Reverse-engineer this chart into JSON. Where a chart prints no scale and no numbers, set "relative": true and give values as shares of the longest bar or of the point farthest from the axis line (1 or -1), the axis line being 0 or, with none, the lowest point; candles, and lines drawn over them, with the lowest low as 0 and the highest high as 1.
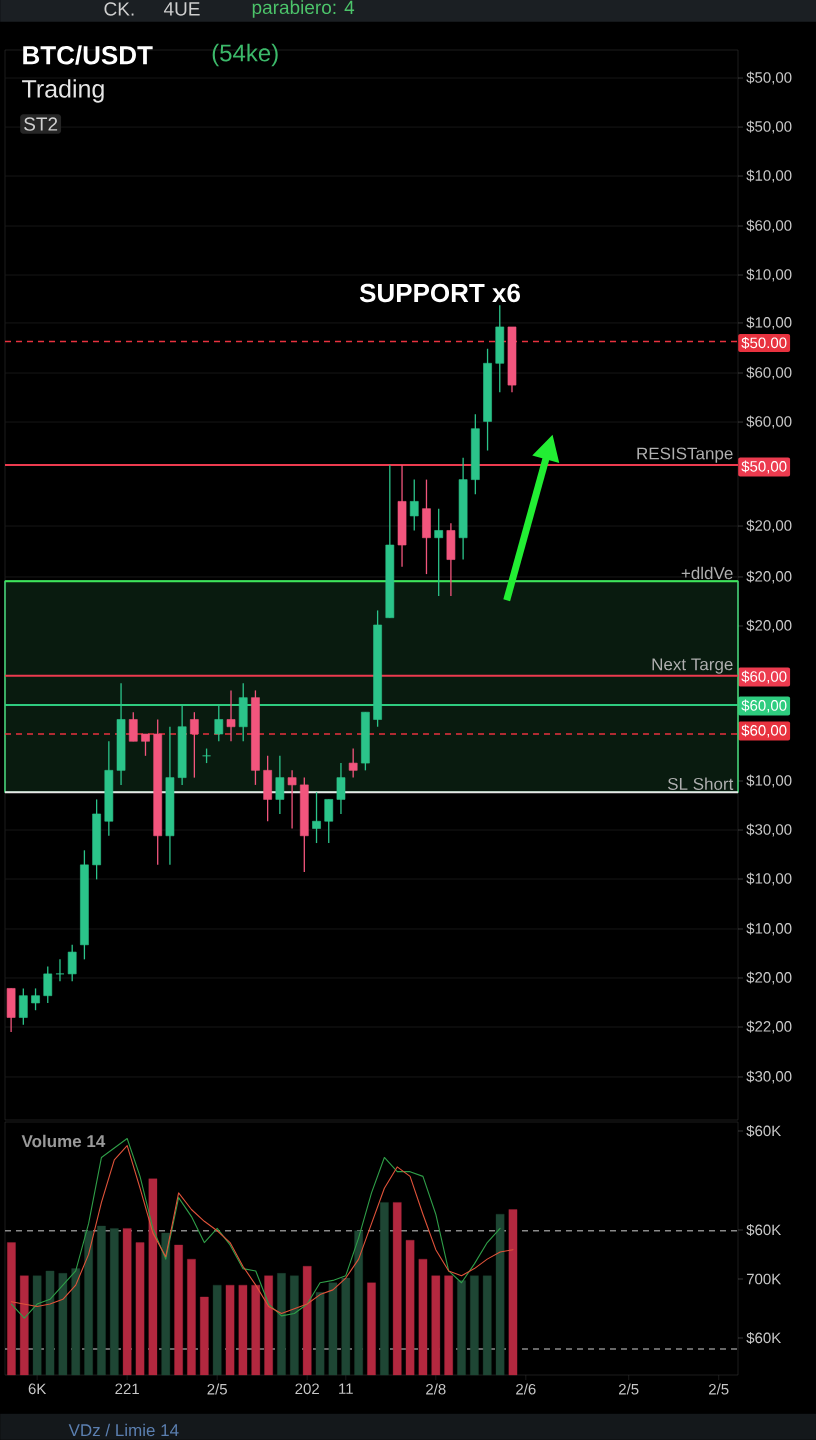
{
  "chart_data": [
    {
      "type": "other",
      "annotations": [
        "CK.",
        "4UE",
        "parabiero: 4"
      ]
    },
    {
      "type": "candlestick",
      "title": "BTC/USDT",
      "subtitle": "Trading",
      "relative": true,
      "categories": [
        null,
        null,
        null,
        null,
        null,
        null,
        null,
        null,
        null,
        null,
        null,
        null,
        null,
        null,
        null,
        null,
        null,
        null,
        null,
        null,
        null,
        null,
        null,
        null,
        null,
        null,
        null,
        null,
        null,
        null,
        null,
        null,
        null,
        null,
        null,
        null,
        null,
        null,
        null,
        null,
        null,
        null,
        null,
        null,
        null,
        null,
        null,
        null,
        null,
        null,
        null,
        null,
        null,
        null,
        null,
        null,
        null,
        null,
        null,
        null
      ],
      "ohlc": [
        [
          0.06,
          0.06,
          0,
          0.02
        ],
        [
          0.02,
          0.06,
          0.01,
          0.05
        ],
        [
          0.04,
          0.06,
          0.03,
          0.05
        ],
        [
          0.05,
          0.09,
          0.04,
          0.08
        ],
        [
          0.08,
          0.1,
          0.07,
          0.08
        ],
        [
          0.08,
          0.12,
          0.07,
          0.11
        ],
        [
          0.12,
          0.25,
          0.1,
          0.23
        ],
        [
          0.23,
          0.32,
          0.21,
          0.3
        ],
        [
          0.29,
          0.4,
          0.27,
          0.36
        ],
        [
          0.36,
          0.48,
          0.34,
          0.43
        ],
        [
          0.43,
          0.44,
          0.4,
          0.4
        ],
        [
          0.41,
          0.41,
          0.38,
          0.4
        ],
        [
          0.41,
          0.43,
          0.23,
          0.27
        ],
        [
          0.27,
          0.42,
          0.23,
          0.35
        ],
        [
          0.35,
          0.45,
          0.34,
          0.42
        ],
        [
          0.43,
          0.44,
          0.35,
          0.41
        ],
        [
          0.38,
          0.39,
          0.37,
          0.38
        ],
        [
          0.41,
          0.45,
          0.4,
          0.43
        ],
        [
          0.43,
          0.47,
          0.4,
          0.42
        ],
        [
          0.42,
          0.48,
          0.4,
          0.46
        ],
        [
          0.46,
          0.47,
          0.34,
          0.36
        ],
        [
          0.36,
          0.38,
          0.29,
          0.32
        ],
        [
          0.32,
          0.38,
          0.3,
          0.35
        ],
        [
          0.35,
          0.36,
          0.28,
          0.34
        ],
        [
          0.34,
          0.35,
          0.22,
          0.27
        ],
        [
          0.28,
          0.33,
          0.26,
          0.29
        ],
        [
          0.29,
          0.32,
          0.26,
          0.32
        ],
        [
          0.32,
          0.37,
          0.3,
          0.35
        ],
        [
          0.37,
          0.39,
          0.35,
          0.36
        ],
        [
          0.37,
          0.44,
          0.36,
          0.44
        ],
        [
          0.43,
          0.58,
          0.42,
          0.56
        ],
        [
          0.57,
          0.78,
          0.57,
          0.67
        ],
        [
          0.73,
          0.78,
          0.64,
          0.67
        ],
        [
          0.71,
          0.76,
          0.69,
          0.73
        ],
        [
          0.72,
          0.76,
          0.63,
          0.68
        ],
        [
          0.68,
          0.72,
          0.6,
          0.69
        ],
        [
          0.69,
          0.7,
          0.6,
          0.65
        ],
        [
          0.68,
          0.79,
          0.65,
          0.76
        ],
        [
          0.76,
          0.85,
          0.74,
          0.83
        ],
        [
          0.84,
          0.94,
          0.8,
          0.92
        ],
        [
          0.92,
          1,
          0.88,
          0.97
        ],
        [
          0.97,
          0.97,
          0.88,
          0.89
        ],
        null,
        null,
        null,
        null,
        null,
        null,
        null,
        null,
        null,
        null,
        null,
        null,
        null,
        null,
        null,
        null,
        null,
        null
      ],
      "colors": [
        "#f2557d",
        "#2bc48a",
        "#2bc48a",
        "#2bc48a",
        "#2bc48a",
        "#2bc48a",
        "#2bc48a",
        "#2bc48a",
        "#2bc48a",
        "#2bc48a",
        "#f2557d",
        "#f2557d",
        "#f2557d",
        "#2bc48a",
        "#2bc48a",
        "#f2557d",
        "#2bc48a",
        "#2bc48a",
        "#f2557d",
        "#2bc48a",
        "#f2557d",
        "#f2557d",
        "#2bc48a",
        "#f2557d",
        "#f2557d",
        "#2bc48a",
        "#2bc48a",
        "#2bc48a",
        "#f2557d",
        "#2bc48a",
        "#2bc48a",
        "#2bc48a",
        "#f2557d",
        "#2bc48a",
        "#f2557d",
        "#2bc48a",
        "#f2557d",
        "#2bc48a",
        "#2bc48a",
        "#2bc48a",
        "#2bc48a",
        "#f2557d",
        null,
        null,
        null,
        null,
        null,
        null,
        null,
        null,
        null,
        null,
        null,
        null,
        null,
        null,
        null,
        null,
        null,
        null
      ],
      "ref_lines": [
        {
          "axis": "y",
          "value": 0.95,
          "color": "#e8323f",
          "line_style": "dashed"
        },
        {
          "axis": "y",
          "value": 0.78,
          "label": "RESISTanpe",
          "color": "#ec3b4f"
        },
        {
          "axis": "y",
          "value": 0.62,
          "label": "+dldVe",
          "color": "#3ee55a"
        },
        {
          "axis": "y",
          "value": 0.49,
          "label": "Next Targe",
          "color": "#ec3b4f"
        },
        {
          "axis": "y",
          "value": 0.45,
          "color": "#2ecc7f"
        },
        {
          "axis": "y",
          "value": 0.41,
          "color": "#e8323f",
          "line_style": "dashed"
        },
        {
          "axis": "y",
          "value": 0.33,
          "label": "SL Short",
          "color": "#e6e6e6"
        }
      ],
      "bands": [
        {
          "axis": "y",
          "from": 0.33,
          "to": 0.62,
          "color": "#4ade80"
        }
      ],
      "annotations": [
        "(54ke)",
        "ST2",
        "SUPPORT x6",
        "$50,00",
        "$50,00",
        "$10,00",
        "$60,00",
        "$10,00",
        "$10,00",
        "$60,00",
        "$60,00",
        "$20,00",
        "$20,00",
        "$20,00",
        "$10,00",
        "$30,00",
        "$10,00",
        "$10,00",
        "$20,00",
        "$22,00",
        "$30,00",
        "$50.00",
        "$50,00",
        "$60,00",
        "$60,00",
        "$60,00"
      ],
      "grid": "y",
      "tick_labels": "y"
    },
    {
      "type": "bar",
      "title": "Volume 14",
      "relative": true,
      "categories": [
        null,
        null,
        "6K",
        null,
        null,
        null,
        null,
        null,
        null,
        "221",
        null,
        null,
        null,
        null,
        null,
        null,
        "2/5",
        null,
        null,
        null,
        null,
        null,
        null,
        "202",
        null,
        null,
        "11",
        null,
        null,
        null,
        null,
        null,
        null,
        "2/8",
        null,
        null,
        null,
        null,
        null,
        null,
        "2/6",
        null,
        null,
        null,
        null,
        null,
        null,
        null,
        "2/5",
        null,
        null,
        null,
        null,
        null,
        null,
        "2/5",
        null
      ],
      "series": [
        {
          "type": "bar",
          "values": [
            0.56,
            0.42,
            0.42,
            0.44,
            0.43,
            0.45,
            0.61,
            0.63,
            0.62,
            0.62,
            0.56,
            0.83,
            0.6,
            0.55,
            0.49,
            0.33,
            0.38,
            0.38,
            0.38,
            0.38,
            0.42,
            0.43,
            0.42,
            0.46,
            0.35,
            0.39,
            0.41,
            0.61,
            0.39,
            0.73,
            0.73,
            0.57,
            0.49,
            0.42,
            0.42,
            0.4,
            0.42,
            0.42,
            0.68,
            0.7,
            null,
            null,
            null,
            null,
            null,
            null,
            null,
            null,
            null,
            null,
            null,
            null,
            null,
            null,
            null,
            null,
            null
          ],
          "colors": [
            "#b3283f",
            "#b3283f",
            "#1e4634",
            "#1e4634",
            "#1e4634",
            "#1e4634",
            "#1e4634",
            "#1e4634",
            "#1e4634",
            "#b3283f",
            "#b3283f",
            "#b3283f",
            "#1e4634",
            "#b3283f",
            "#b3283f",
            "#b3283f",
            "#1e4634",
            "#b3283f",
            "#b3283f",
            "#b3283f",
            "#b3283f",
            "#1e4634",
            "#1e4634",
            "#b3283f",
            "#1e4634",
            "#1e4634",
            "#1e4634",
            "#1e4634",
            "#b3283f",
            "#1e4634",
            "#b3283f",
            "#b3283f",
            "#b3283f",
            "#b3283f",
            "#b3283f",
            "#1e4634",
            "#1e4634",
            "#1e4634",
            "#1e4634",
            "#b3283f",
            null,
            null,
            null,
            null,
            null,
            null,
            null,
            null,
            null,
            null,
            null,
            null,
            null,
            null,
            null,
            null,
            null
          ]
        },
        {
          "type": "line",
          "color": "#2f9e48",
          "values": [
            0.3,
            0.24,
            0.3,
            0.32,
            0.38,
            0.44,
            0.64,
            0.92,
            0.96,
            1,
            0.84,
            0.62,
            0.49,
            0.75,
            0.67,
            0.56,
            0.62,
            0.55,
            0.45,
            0.44,
            0.3,
            0.25,
            0.26,
            0.3,
            0.39,
            0.4,
            0.42,
            0.58,
            0.77,
            0.92,
            0.86,
            0.86,
            0.84,
            0.68,
            0.44,
            0.39,
            0.47,
            0.56,
            0.62,
            null,
            null,
            null,
            null,
            null,
            null,
            null,
            null,
            null,
            null,
            null,
            null,
            null,
            null,
            null,
            null,
            null,
            null
          ]
        },
        {
          "type": "line",
          "color": "#e0533a",
          "values": [
            0.31,
            0.3,
            0.29,
            0.3,
            0.32,
            0.38,
            0.51,
            0.73,
            0.91,
            0.97,
            0.79,
            0.6,
            0.5,
            0.77,
            0.7,
            0.65,
            0.61,
            0.56,
            0.46,
            0.38,
            0.29,
            0.26,
            0.28,
            0.3,
            0.34,
            0.36,
            0.41,
            0.49,
            0.64,
            0.79,
            0.88,
            0.84,
            0.68,
            0.53,
            0.44,
            0.42,
            0.45,
            0.49,
            0.52,
            0.53,
            null,
            null,
            null,
            null,
            null,
            null,
            null,
            null,
            null,
            null,
            null,
            null,
            null,
            null,
            null,
            null,
            null
          ]
        }
      ],
      "ref_lines": [
        {
          "axis": "y",
          "value": 0.61,
          "color": "#8a8a8a",
          "line_style": "dashed"
        },
        {
          "axis": "y",
          "value": 0.11,
          "color": "#8a8a8a",
          "line_style": "dashed"
        }
      ],
      "annotations": [
        "VDz / Limie 14",
        "$60K",
        "$60K",
        "700K",
        "$60K"
      ]
    }
  ]
}
